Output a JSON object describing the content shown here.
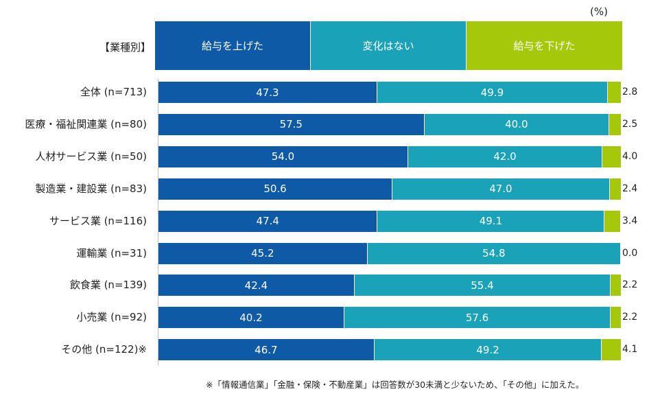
{
  "chart_data": {
    "type": "bar",
    "orientation": "horizontal",
    "stacked": true,
    "unit_label": "(%)",
    "category_header": "【業種別】",
    "categories": [
      "全体 (n=713)",
      "医療・福祉関連業 (n=80)",
      "人材サービス業 (n=50)",
      "製造業・建設業 (n=83)",
      "サービス業 (n=116)",
      "運輸業 (n=31)",
      "飲食業 (n=139)",
      "小売業 (n=92)",
      "その他 (n=122)※"
    ],
    "series": [
      {
        "name": "給与を上げた",
        "color": "#0f5aa6",
        "values": [
          47.3,
          57.5,
          54.0,
          50.6,
          47.4,
          45.2,
          42.4,
          40.2,
          46.7
        ]
      },
      {
        "name": "変化はない",
        "color": "#1aa3b8",
        "values": [
          49.9,
          40.0,
          42.0,
          47.0,
          49.1,
          54.8,
          55.4,
          57.6,
          49.2
        ]
      },
      {
        "name": "給与を下げた",
        "color": "#a5c90a",
        "values": [
          2.8,
          2.5,
          4.0,
          2.4,
          3.4,
          0.0,
          2.2,
          2.2,
          4.1
        ]
      }
    ],
    "xlim": [
      0,
      100
    ],
    "footnote": "※「情報通信業」「金融・保険・不動産業」は回答数が30未満と少ないため、「その他」に加えた。"
  }
}
